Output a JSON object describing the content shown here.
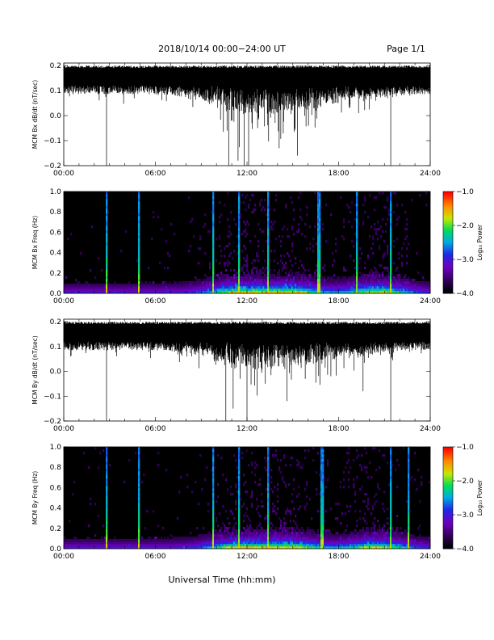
{
  "header": {
    "date_range": "2018/10/14   00:00−24:00 UT",
    "page": "Page 1/1"
  },
  "footer": {
    "xlabel": "Universal Time (hh:mm)"
  },
  "chart_data": [
    {
      "type": "line",
      "ylabel": "MCM Bx dB/dt (nT/sec)",
      "x_ticks": [
        "00:00",
        "06:00",
        "12:00",
        "18:00",
        "24:00"
      ],
      "y_ticks": [
        "0.2",
        "0.1",
        "0.0",
        "−0.1",
        "−0.2"
      ],
      "ylim": [
        -0.2,
        0.21
      ],
      "xlim_hours": [
        0,
        24
      ],
      "baseline_upper_envelope": 0.19,
      "baseline_lower_envelope": 0.12,
      "spikes": [
        {
          "t": 2.8,
          "v": -0.2
        },
        {
          "t": 10.8,
          "v": -0.2
        },
        {
          "t": 11.4,
          "v": -0.18
        },
        {
          "t": 11.8,
          "v": -0.2
        },
        {
          "t": 12.1,
          "v": -0.2
        },
        {
          "t": 12.7,
          "v": -0.05
        },
        {
          "t": 14.1,
          "v": -0.13
        },
        {
          "t": 15.3,
          "v": -0.16
        },
        {
          "t": 16.5,
          "v": 0.02
        },
        {
          "t": 17.2,
          "v": 0.05
        },
        {
          "t": 21.4,
          "v": -0.2
        }
      ]
    },
    {
      "type": "heatmap",
      "ylabel": "MCM Bx Freq (Hz)",
      "x_ticks": [
        "00:00",
        "06:00",
        "12:00",
        "18:00",
        "24:00"
      ],
      "y_ticks": [
        "1.0",
        "0.8",
        "0.6",
        "0.4",
        "0.2",
        "0.0"
      ],
      "ylim": [
        0,
        1.0
      ],
      "colorbar": {
        "label": "Log₁₀ Power",
        "ticks": [
          "−1.0",
          "−2.0",
          "−3.0",
          "−4.0"
        ],
        "range": [
          -4.0,
          -1.0
        ]
      },
      "vertical_bands_hours": [
        2.8,
        4.9,
        9.8,
        11.5,
        13.4,
        16.7,
        19.2,
        21.4
      ],
      "activity_peak_hours": [
        11.5,
        15.0,
        20.5
      ]
    },
    {
      "type": "line",
      "ylabel": "MCM By dB/dt (nT/sec)",
      "x_ticks": [
        "00:00",
        "06:00",
        "12:00",
        "18:00",
        "24:00"
      ],
      "y_ticks": [
        "0.2",
        "0.1",
        "0.0",
        "−0.1",
        "−0.2"
      ],
      "ylim": [
        -0.2,
        0.21
      ],
      "xlim_hours": [
        0,
        24
      ],
      "baseline_upper_envelope": 0.19,
      "baseline_lower_envelope": 0.12,
      "spikes": [
        {
          "t": 2.8,
          "v": -0.2
        },
        {
          "t": 10.6,
          "v": -0.2
        },
        {
          "t": 11.1,
          "v": -0.15
        },
        {
          "t": 12.0,
          "v": -0.2
        },
        {
          "t": 13.2,
          "v": -0.05
        },
        {
          "t": 14.6,
          "v": -0.12
        },
        {
          "t": 15.8,
          "v": -0.03
        },
        {
          "t": 17.5,
          "v": -0.02
        },
        {
          "t": 19.6,
          "v": -0.08
        },
        {
          "t": 21.4,
          "v": -0.2
        }
      ]
    },
    {
      "type": "heatmap",
      "ylabel": "MCM By Freq (Hz)",
      "x_ticks": [
        "00:00",
        "06:00",
        "12:00",
        "18:00",
        "24:00"
      ],
      "y_ticks": [
        "1.0",
        "0.8",
        "0.6",
        "0.4",
        "0.2",
        "0.0"
      ],
      "ylim": [
        0,
        1.0
      ],
      "colorbar": {
        "label": "Log₁₀ Power",
        "ticks": [
          "−1.0",
          "−2.0",
          "−3.0",
          "−4.0"
        ],
        "range": [
          -4.0,
          -1.0
        ]
      },
      "vertical_bands_hours": [
        2.8,
        4.9,
        9.8,
        11.5,
        13.4,
        16.9,
        21.4,
        22.6
      ],
      "activity_peak_hours": [
        11.5,
        15.0,
        20.5
      ]
    }
  ]
}
